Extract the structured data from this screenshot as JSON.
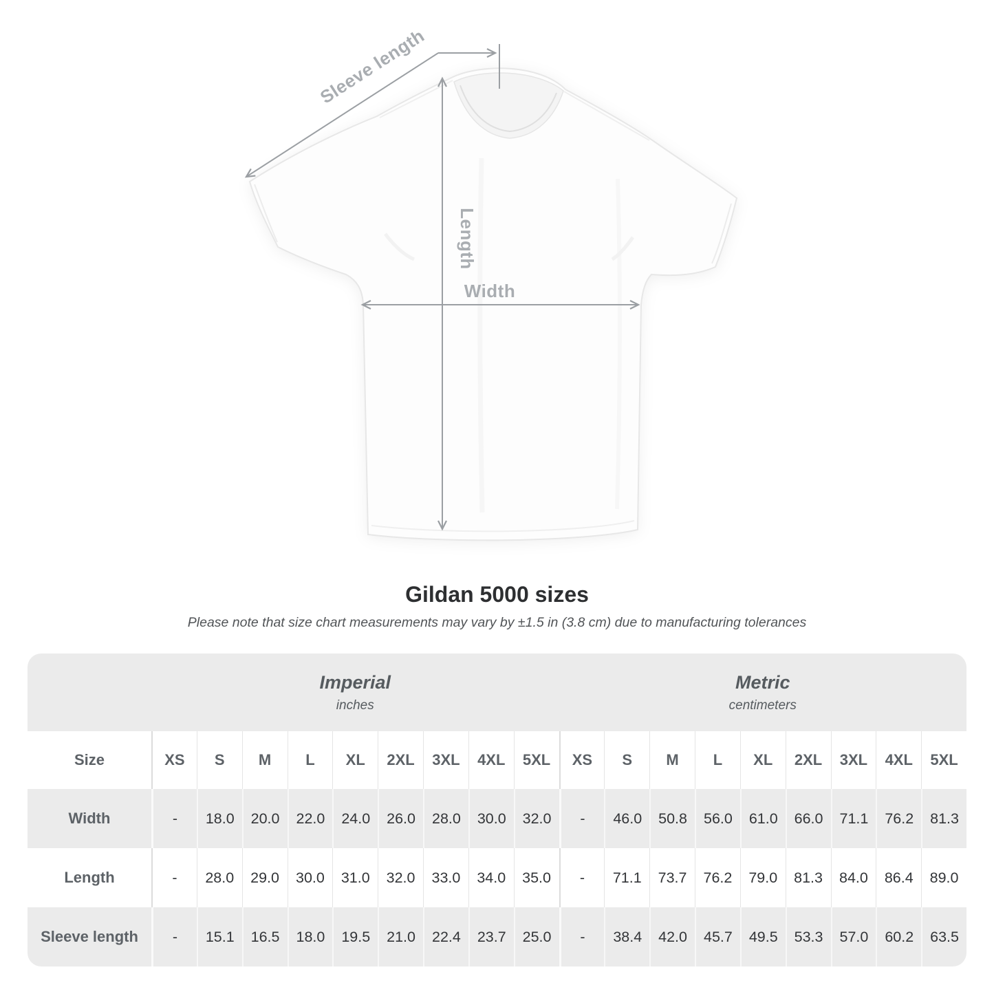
{
  "diagram": {
    "sleeve_length_label": "Sleeve length",
    "length_label": "Length",
    "width_label": "Width"
  },
  "heading": {
    "title": "Gildan 5000 sizes",
    "note": "Please note that size chart measurements may vary by ±1.5 in (3.8 cm) due to manufacturing tolerances"
  },
  "table": {
    "corner_label": "Size",
    "groups": [
      {
        "label": "Imperial",
        "unit": "inches",
        "sizes": [
          "XS",
          "S",
          "M",
          "L",
          "XL",
          "2XL",
          "3XL",
          "4XL",
          "5XL"
        ]
      },
      {
        "label": "Metric",
        "unit": "centimeters",
        "sizes": [
          "XS",
          "S",
          "M",
          "L",
          "XL",
          "2XL",
          "3XL",
          "4XL",
          "5XL"
        ]
      }
    ],
    "rows": [
      {
        "label": "Width",
        "imperial": [
          "-",
          "18.0",
          "20.0",
          "22.0",
          "24.0",
          "26.0",
          "28.0",
          "30.0",
          "32.0"
        ],
        "metric": [
          "-",
          "46.0",
          "50.8",
          "56.0",
          "61.0",
          "66.0",
          "71.1",
          "76.2",
          "81.3"
        ]
      },
      {
        "label": "Length",
        "imperial": [
          "-",
          "28.0",
          "29.0",
          "30.0",
          "31.0",
          "32.0",
          "33.0",
          "34.0",
          "35.0"
        ],
        "metric": [
          "-",
          "71.1",
          "73.7",
          "76.2",
          "79.0",
          "81.3",
          "84.0",
          "86.4",
          "89.0"
        ]
      },
      {
        "label": "Sleeve length",
        "imperial": [
          "-",
          "15.1",
          "16.5",
          "18.0",
          "19.5",
          "21.0",
          "22.4",
          "23.7",
          "25.0"
        ],
        "metric": [
          "-",
          "38.4",
          "42.0",
          "45.7",
          "49.5",
          "53.3",
          "57.0",
          "60.2",
          "63.5"
        ]
      }
    ]
  },
  "colors": {
    "band_gray": "#ebebeb",
    "dimension_line_gray": "#9b9fa3",
    "dimension_label_gray": "#a9adb1",
    "header_text_gray": "#5d6267",
    "value_text": "#333538",
    "title_text": "#2d2f31"
  }
}
